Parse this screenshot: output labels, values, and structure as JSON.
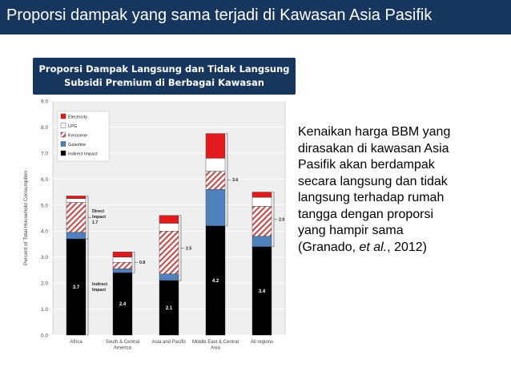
{
  "slide": {
    "title": "Proporsi dampak yang sama terjadi di Kawasan Asia Pasifik",
    "subtitle_lines": [
      "Proporsi Dampak Langsung dan Tidak Langsung",
      "Subsidi Premium di Berbagai Kawasan"
    ],
    "body_lines": [
      "Kenaikan harga BBM yang",
      "dirasakan di kawasan Asia",
      "Pasifik akan berdampak",
      "secara langsung dan tidak",
      "langsung terhadap rumah",
      "tangga dengan proporsi",
      "yang hampir sama"
    ],
    "citation": {
      "open": "(Granado, ",
      "italic": "et al.",
      "close": ", 2012)"
    }
  },
  "chart_data": {
    "type": "bar",
    "stacked": true,
    "ylabel": "Percent of Total Household Consumption",
    "ylim": [
      0,
      9
    ],
    "yticks": [
      "0.0",
      "1.0",
      "2.0",
      "3.0",
      "4.0",
      "5.0",
      "6.0",
      "7.0",
      "8.0",
      "9.0"
    ],
    "categories": [
      "Africa",
      "South & Central America",
      "Asia and Pacific",
      "Middle East & Central Asia",
      "All regions"
    ],
    "category_labels": [
      [
        "Africa"
      ],
      [
        "South & Central",
        "America"
      ],
      [
        "Asia and Pacific"
      ],
      [
        "Middle East & Central",
        "Asia"
      ],
      [
        "All regions"
      ]
    ],
    "series": [
      {
        "name": "Indirect Impact",
        "color": "#000000",
        "values": [
          3.7,
          2.4,
          2.1,
          4.2,
          3.4
        ]
      },
      {
        "name": "Gasoline",
        "color": "#4f81bd",
        "values": [
          0.25,
          0.15,
          0.25,
          1.4,
          0.4
        ]
      },
      {
        "name": "Kerosene",
        "color": "#c0504d",
        "pattern": "hatch",
        "values": [
          1.15,
          0.25,
          1.65,
          0.7,
          1.15
        ]
      },
      {
        "name": "LPG",
        "color": "#ffffff",
        "values": [
          0.15,
          0.2,
          0.3,
          0.5,
          0.35
        ]
      },
      {
        "name": "Electricity",
        "color": "#e31a1c",
        "values": [
          0.1,
          0.2,
          0.3,
          0.95,
          0.2
        ]
      }
    ],
    "legend_order": [
      "Electricity",
      "LPG",
      "Kerosene",
      "Gasoline",
      "Indirect Impact"
    ],
    "legend_position": "top-left",
    "bar_value_labels": [
      "3.7",
      "2.4",
      "2.1",
      "4.2",
      "3.4"
    ],
    "direct_labels": [
      "1.7",
      "0.8",
      "2.5",
      "3.6",
      "2.0"
    ],
    "annotations": {
      "direct": [
        "Direct",
        "Impact",
        "1.7"
      ],
      "indirect": [
        "Indirect",
        "Impact"
      ]
    },
    "grid": true
  }
}
